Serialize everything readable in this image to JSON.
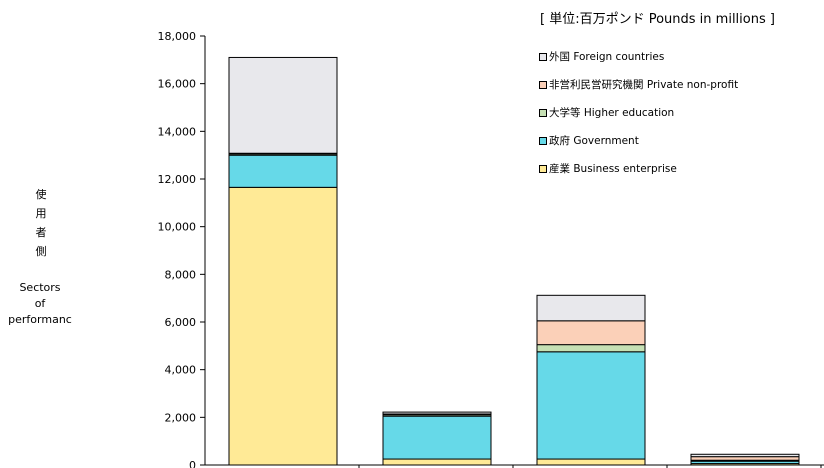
{
  "chart_data": {
    "type": "bar",
    "stacked": true,
    "unit_label": "[ 単位:百万ポンド Pounds in millions ]",
    "ylabel_jp": "使用者側",
    "ylabel_en": [
      "Sectors",
      "of",
      "performanc"
    ],
    "ylim": [
      0,
      18000
    ],
    "yticks": [
      "0",
      "2,000",
      "4,000",
      "6,000",
      "8,000",
      "10,000",
      "12,000",
      "14,000",
      "16,000",
      "18,000"
    ],
    "categories": [
      "",
      "",
      "",
      ""
    ],
    "series": [
      {
        "name": "産業 Business enterprise",
        "color": "#ffea96",
        "values": [
          11650,
          250,
          250,
          60
        ]
      },
      {
        "name": "政府 Government",
        "color": "#66d9e8",
        "values": [
          1350,
          1800,
          4500,
          100
        ]
      },
      {
        "name": "大学等 Higher education",
        "color": "#c6e0b4",
        "values": [
          50,
          60,
          300,
          40
        ]
      },
      {
        "name": "非営利民営研究機関 Private non-profit",
        "color": "#fbd0b8",
        "values": [
          30,
          30,
          1000,
          150
        ]
      },
      {
        "name": "外国 Foreign countries",
        "color": "#e8e8ec",
        "values": [
          4020,
          80,
          1070,
          100
        ]
      }
    ],
    "legend_position": "top-right",
    "grid": false
  }
}
